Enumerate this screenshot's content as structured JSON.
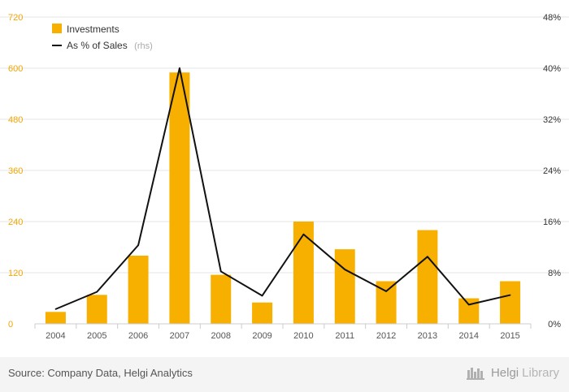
{
  "chart_data": {
    "type": "bar+line",
    "categories": [
      "2004",
      "2005",
      "2006",
      "2007",
      "2008",
      "2009",
      "2010",
      "2011",
      "2012",
      "2013",
      "2014",
      "2015"
    ],
    "series": [
      {
        "name": "Investments",
        "type": "bar",
        "axis": "left",
        "color": "#f8b000",
        "values": [
          28,
          68,
          160,
          590,
          115,
          50,
          240,
          175,
          100,
          220,
          60,
          100
        ]
      },
      {
        "name": "As % of Sales",
        "name_suffix": "(rhs)",
        "type": "line",
        "axis": "right",
        "color": "#111111",
        "values": [
          2.3,
          5.0,
          12.3,
          40.0,
          8.2,
          4.4,
          14.0,
          8.5,
          5.1,
          10.5,
          3.0,
          4.5
        ]
      }
    ],
    "left_axis": {
      "min": 0,
      "max": 720,
      "ticks": [
        "0",
        "120",
        "240",
        "360",
        "480",
        "600",
        "720"
      ]
    },
    "right_axis": {
      "min": 0,
      "max": 48,
      "ticks": [
        "0%",
        "8%",
        "16%",
        "24%",
        "32%",
        "40%",
        "48%"
      ]
    },
    "grid": true,
    "legend": "top-left"
  },
  "legend": {
    "investments": "Investments",
    "pct_sales": "As % of Sales",
    "pct_sales_suffix": "(rhs)"
  },
  "footer": {
    "source": "Source: Company Data, Helgi Analytics",
    "brand_part1": "Helgi",
    "brand_part2": "Library"
  },
  "colors": {
    "bar": "#f8b000",
    "line": "#111111",
    "left_tick": "#f2a500",
    "grid": "#e6e6e6"
  }
}
